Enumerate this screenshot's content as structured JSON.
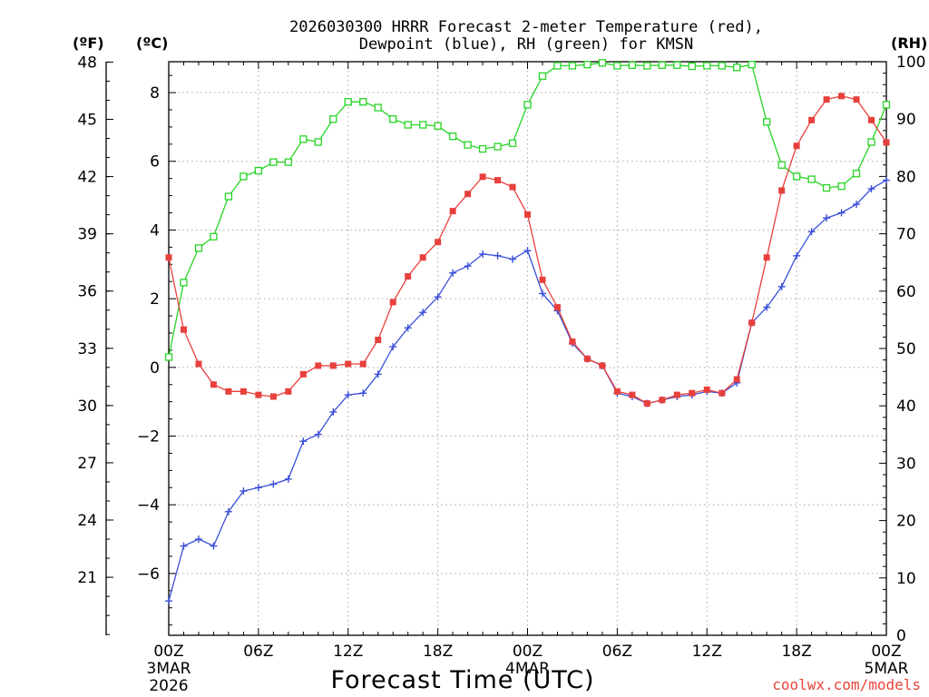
{
  "title_line1": "2026030300 HRRR Forecast 2-meter Temperature (red),",
  "title_line2": "Dewpoint (blue), RH (green) for KMSN",
  "units": {
    "fahrenheit": "(ºF)",
    "celsius": "(ºC)",
    "rh": "(RH)"
  },
  "x_title": "Forecast Time (UTC)",
  "credit": "coolwx.com/models",
  "chart_data": {
    "type": "line",
    "title": "2026030300 HRRR Forecast 2-meter Temperature (red), Dewpoint (blue), RH (green) for KMSN",
    "xlabel": "Forecast Time (UTC)",
    "x_hours": [
      0,
      1,
      2,
      3,
      4,
      5,
      6,
      7,
      8,
      9,
      10,
      11,
      12,
      13,
      14,
      15,
      16,
      17,
      18,
      19,
      20,
      21,
      22,
      23,
      24,
      25,
      26,
      27,
      28,
      29,
      30,
      31,
      32,
      33,
      34,
      35,
      36,
      37,
      38,
      39,
      40,
      41,
      42,
      43,
      44,
      45,
      46,
      47,
      48
    ],
    "x_ticks": [
      {
        "hour": 0,
        "label": "00Z",
        "sub1": "3MAR",
        "sub2": "2026"
      },
      {
        "hour": 6,
        "label": "06Z"
      },
      {
        "hour": 12,
        "label": "12Z"
      },
      {
        "hour": 18,
        "label": "18Z"
      },
      {
        "hour": 24,
        "label": "00Z",
        "sub1": "4MAR"
      },
      {
        "hour": 30,
        "label": "06Z"
      },
      {
        "hour": 36,
        "label": "12Z"
      },
      {
        "hour": 42,
        "label": "18Z"
      },
      {
        "hour": 48,
        "label": "00Z",
        "sub1": "5MAR"
      }
    ],
    "xlim": [
      0,
      48
    ],
    "y_celsius": {
      "label": "(ºC)",
      "ylim": [
        -7.8,
        8.9
      ],
      "ticks": [
        -6,
        -4,
        -2,
        0,
        2,
        4,
        6,
        8
      ]
    },
    "y_fahrenheit": {
      "label": "(ºF)",
      "ticks": [
        21,
        24,
        27,
        30,
        33,
        36,
        39,
        42,
        45,
        48
      ]
    },
    "y_rh": {
      "label": "(RH)",
      "ylim": [
        0,
        100
      ],
      "ticks": [
        0,
        10,
        20,
        30,
        40,
        50,
        60,
        70,
        80,
        90,
        100
      ]
    },
    "grid": true,
    "series": [
      {
        "name": "Temperature (red)",
        "axis": "celsius",
        "color": "#e8403c",
        "marker": "filled-square",
        "values": [
          3.2,
          1.1,
          0.1,
          -0.5,
          -0.7,
          -0.7,
          -0.8,
          -0.85,
          -0.7,
          -0.2,
          0.05,
          0.05,
          0.1,
          0.1,
          0.8,
          1.9,
          2.65,
          3.2,
          3.65,
          4.55,
          5.05,
          5.55,
          5.45,
          5.25,
          4.45,
          2.55,
          1.75,
          0.75,
          0.25,
          0.05,
          -0.7,
          -0.8,
          -1.05,
          -0.95,
          -0.8,
          -0.75,
          -0.65,
          -0.75,
          -0.35,
          1.3,
          3.2,
          5.15,
          6.45,
          7.2,
          7.8,
          7.9,
          7.8,
          7.2,
          6.55
        ]
      },
      {
        "name": "Dewpoint (blue)",
        "axis": "celsius",
        "color": "#3a4fd8",
        "marker": "plus",
        "values": [
          -6.8,
          -5.2,
          -5.0,
          -5.2,
          -4.2,
          -3.6,
          -3.5,
          -3.4,
          -3.25,
          -2.15,
          -1.95,
          -1.3,
          -0.8,
          -0.75,
          -0.2,
          0.6,
          1.15,
          1.6,
          2.05,
          2.75,
          2.95,
          3.3,
          3.25,
          3.15,
          3.4,
          2.15,
          1.65,
          0.7,
          0.25,
          0.05,
          -0.75,
          -0.85,
          -1.05,
          -0.95,
          -0.85,
          -0.8,
          -0.7,
          -0.75,
          -0.45,
          1.3,
          1.75,
          2.35,
          3.25,
          3.95,
          4.35,
          4.5,
          4.75,
          5.2,
          5.45
        ]
      },
      {
        "name": "RH (green)",
        "axis": "rh",
        "color": "#27d425",
        "marker": "open-square",
        "values": [
          48.5,
          61.5,
          67.5,
          69.5,
          76.5,
          80.0,
          81.0,
          82.5,
          82.5,
          86.5,
          86.0,
          90.0,
          93.0,
          93.0,
          92.0,
          90.0,
          89.0,
          89.0,
          88.8,
          87.0,
          85.5,
          84.8,
          85.2,
          85.8,
          92.5,
          97.5,
          99.3,
          99.3,
          99.5,
          99.8,
          99.3,
          99.4,
          99.3,
          99.4,
          99.4,
          99.2,
          99.3,
          99.3,
          99.0,
          99.5,
          89.5,
          82.0,
          80.0,
          79.5,
          78.0,
          78.3,
          80.5,
          86.0,
          92.5
        ]
      }
    ]
  }
}
